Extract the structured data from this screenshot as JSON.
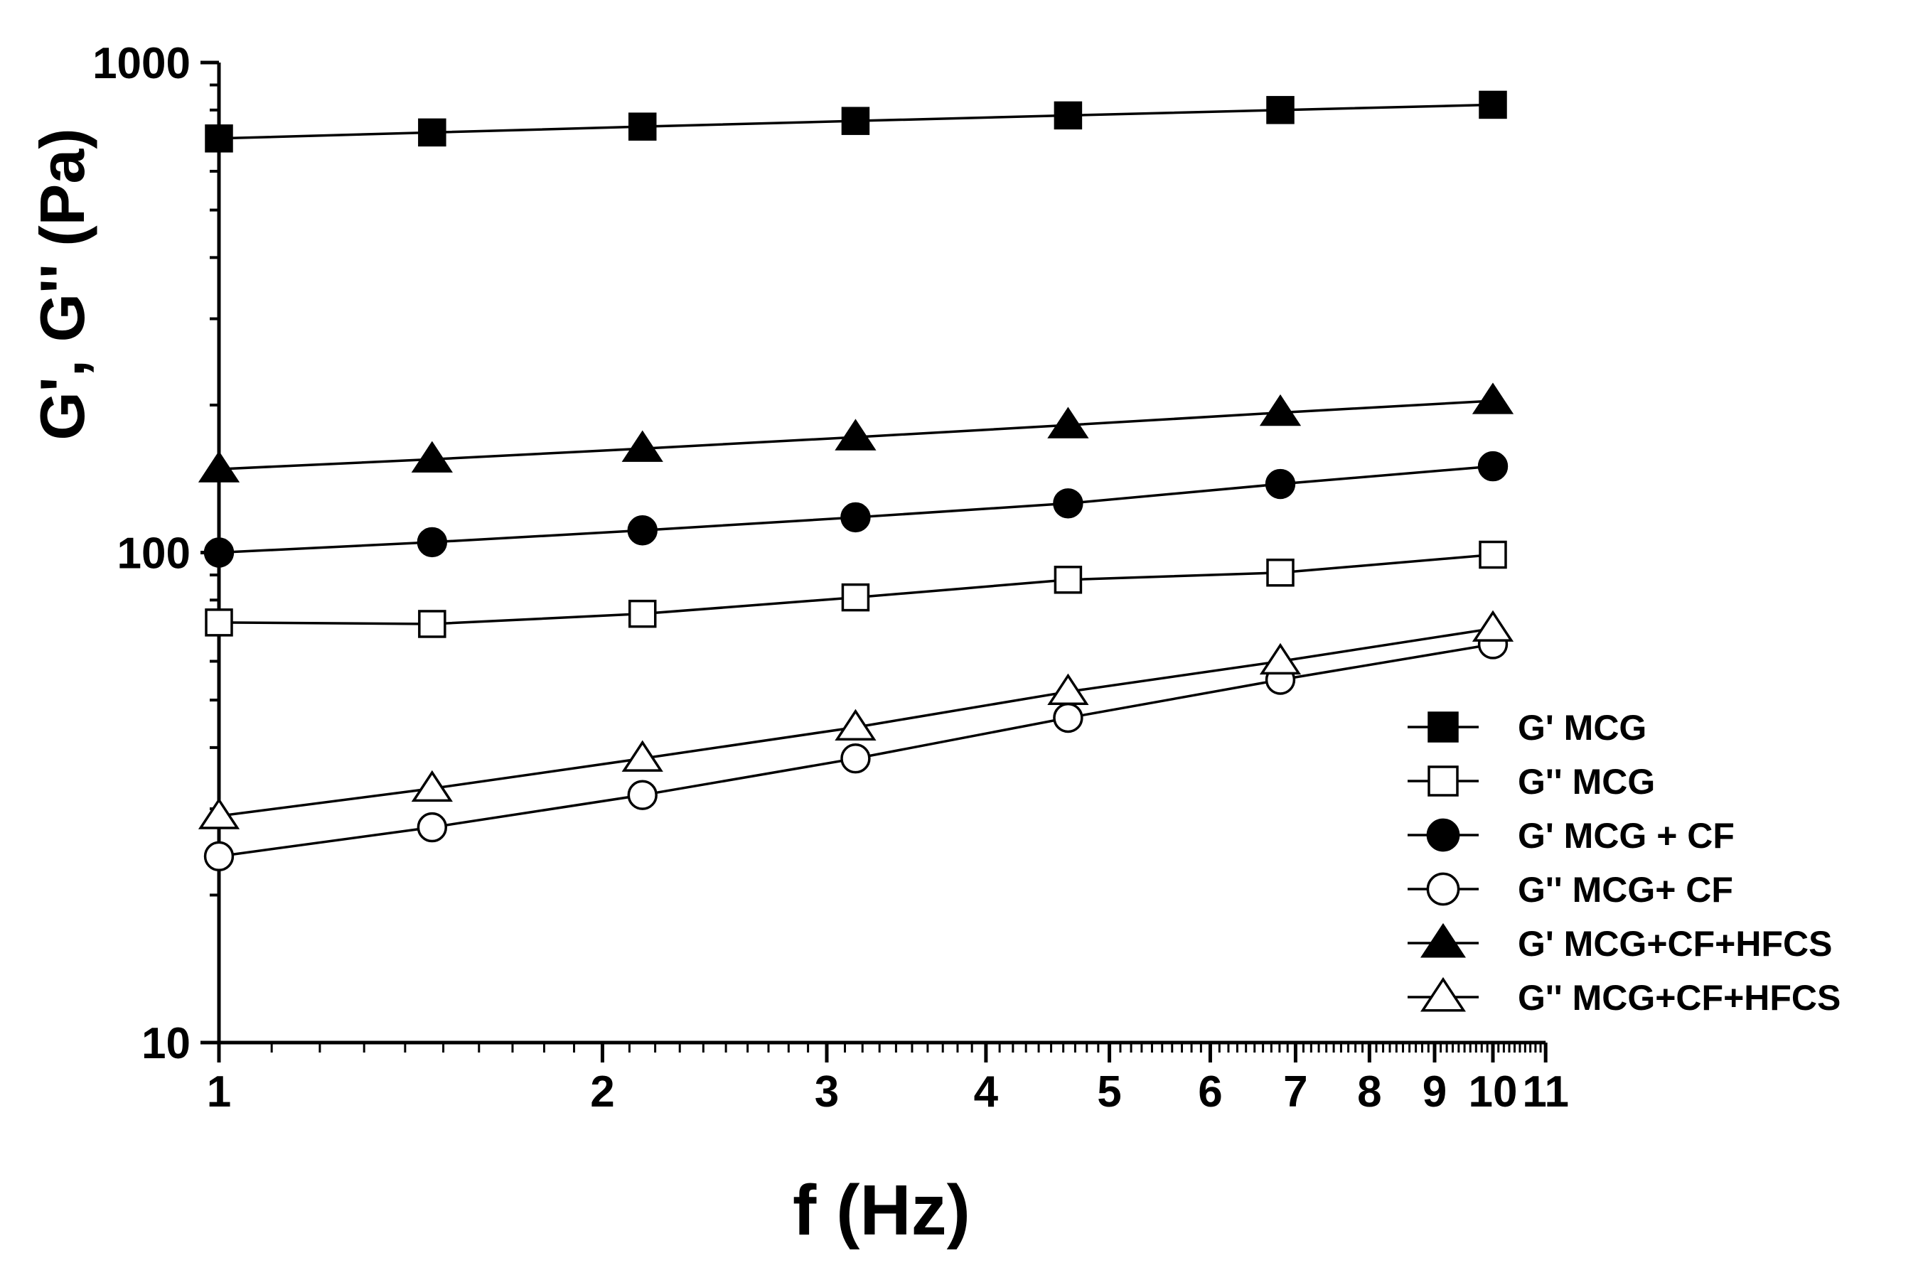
{
  "chart_data": {
    "type": "line",
    "title": "",
    "xlabel": "f (Hz)",
    "ylabel": "G', G'' (Pa)",
    "xscale": "log",
    "yscale": "log",
    "xlim": [
      1,
      11
    ],
    "ylim": [
      10,
      1000
    ],
    "x_tick_labels": [
      "1",
      "2",
      "3",
      "4",
      "5",
      "6",
      "7",
      "8",
      "9",
      "10",
      "11"
    ],
    "y_tick_labels": [
      "10",
      "100",
      "1000"
    ],
    "x": [
      1,
      1.47,
      2.15,
      3.16,
      4.64,
      6.81,
      10
    ],
    "legend_position": "bottom-right",
    "series": [
      {
        "name": "G' MCG",
        "marker": "square",
        "filled": true,
        "values": [
          700,
          720,
          740,
          760,
          780,
          800,
          820
        ]
      },
      {
        "name": "G'' MCG",
        "marker": "square",
        "filled": false,
        "values": [
          72,
          71.5,
          75,
          81,
          88,
          91,
          99
        ]
      },
      {
        "name": "G' MCG + CF",
        "marker": "circle",
        "filled": true,
        "values": [
          100,
          105,
          111,
          118,
          126,
          138,
          150
        ]
      },
      {
        "name": "G'' MCG+ CF",
        "marker": "circle",
        "filled": false,
        "values": [
          24,
          27.5,
          32,
          38,
          46,
          55,
          65
        ]
      },
      {
        "name": "G' MCG+CF+HFCS",
        "marker": "triangle",
        "filled": true,
        "values": [
          148,
          155,
          163,
          172,
          182,
          193,
          204
        ]
      },
      {
        "name": "G'' MCG+CF+HFCS",
        "marker": "triangle",
        "filled": false,
        "values": [
          29,
          33,
          38,
          44,
          52,
          60,
          70
        ]
      }
    ]
  }
}
